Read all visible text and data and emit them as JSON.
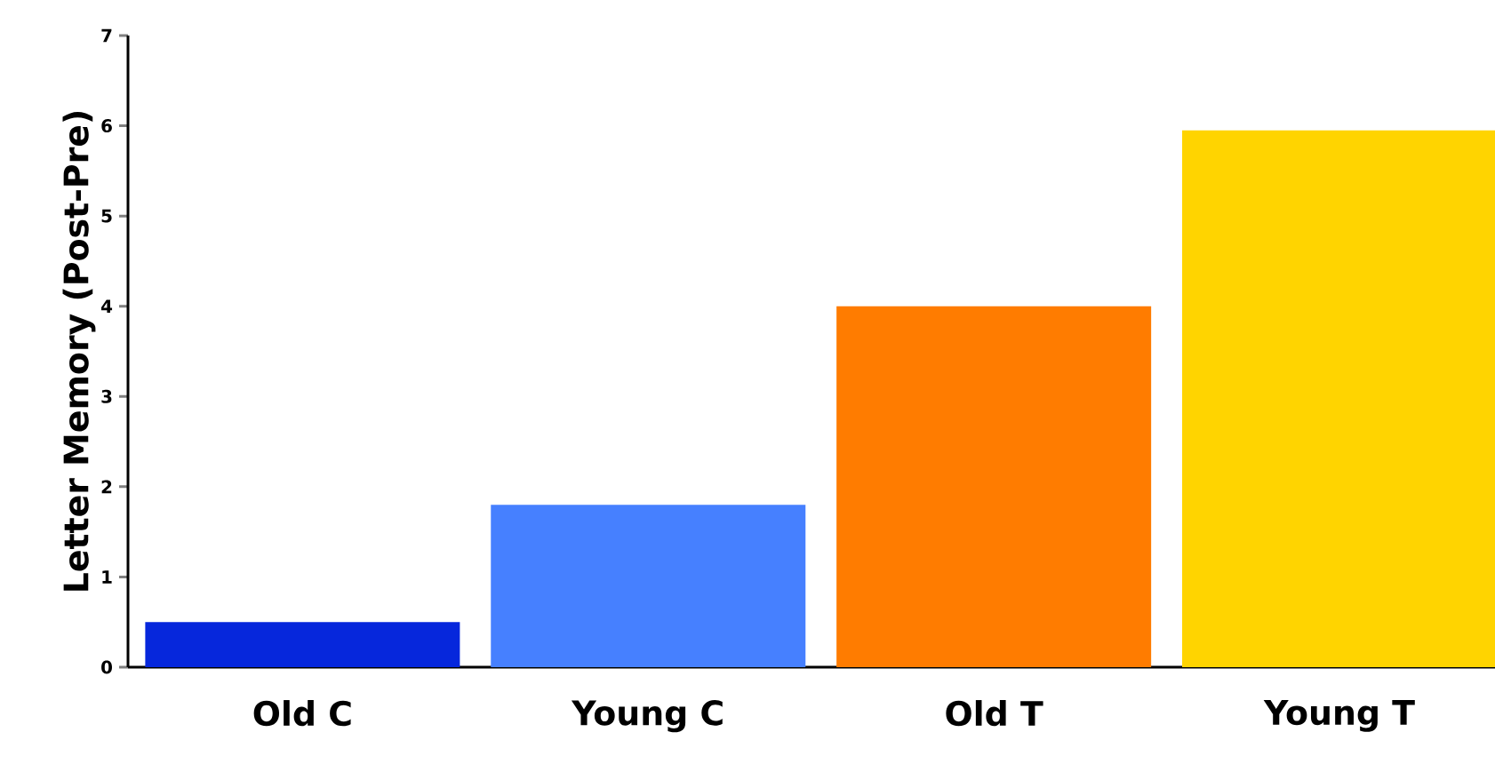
{
  "chart_data": {
    "type": "bar",
    "ylabel": "Letter Memory (Post-Pre)",
    "categories": [
      "Old C",
      "Young C",
      "Old T",
      "Young T"
    ],
    "values": [
      0.5,
      1.8,
      4.0,
      5.95
    ],
    "colors": [
      "#0627dc",
      "#4680ff",
      "#ff7c00",
      "#ffd400"
    ],
    "ylim": [
      0,
      7
    ],
    "yticks": [
      0,
      1,
      2,
      3,
      4,
      5,
      6,
      7
    ]
  }
}
